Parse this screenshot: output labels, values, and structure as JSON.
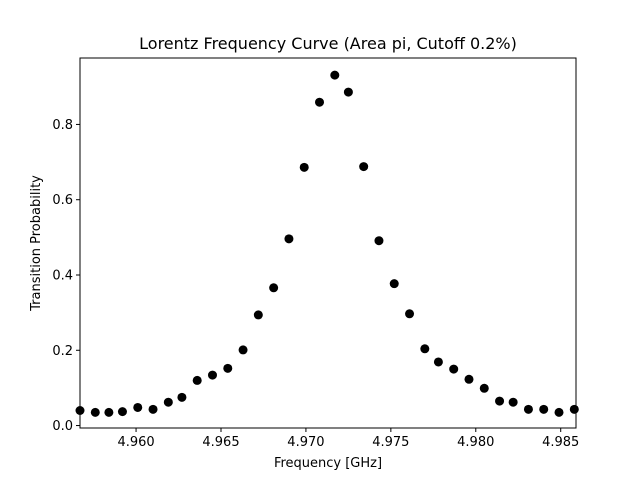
{
  "chart_data": {
    "type": "scatter",
    "title": "Lorentz Frequency Curve (Area pi, Cutoff 0.2%)",
    "xlabel": "Frequency [GHz]",
    "ylabel": "Transition Probability",
    "xlim": [
      4.9567,
      4.9859
    ],
    "ylim": [
      -0.0065,
      0.9765
    ],
    "xticks": [
      4.96,
      4.965,
      4.97,
      4.975,
      4.98,
      4.985
    ],
    "xtick_labels": [
      "4.960",
      "4.965",
      "4.970",
      "4.975",
      "4.980",
      "4.985"
    ],
    "yticks": [
      0.0,
      0.2,
      0.4,
      0.6,
      0.8
    ],
    "ytick_labels": [
      "0.0",
      "0.2",
      "0.4",
      "0.6",
      "0.8"
    ],
    "grid": false,
    "legend": false,
    "marker_color": "#000000",
    "x": [
      4.9567,
      4.9576,
      4.9584,
      4.9592,
      4.9601,
      4.961,
      4.9619,
      4.9627,
      4.9636,
      4.9645,
      4.9654,
      4.9663,
      4.9672,
      4.9681,
      4.969,
      4.9699,
      4.9708,
      4.9717,
      4.9725,
      4.9734,
      4.9743,
      4.9752,
      4.9761,
      4.977,
      4.9778,
      4.9787,
      4.9796,
      4.9805,
      4.9814,
      4.9822,
      4.9831,
      4.984,
      4.9849,
      4.9858
    ],
    "y": [
      0.04,
      0.035,
      0.035,
      0.037,
      0.048,
      0.043,
      0.062,
      0.075,
      0.12,
      0.134,
      0.152,
      0.201,
      0.294,
      0.366,
      0.496,
      0.686,
      0.859,
      0.931,
      0.886,
      0.688,
      0.491,
      0.377,
      0.297,
      0.204,
      0.169,
      0.15,
      0.123,
      0.099,
      0.065,
      0.062,
      0.043,
      0.043,
      0.035,
      0.043
    ]
  }
}
